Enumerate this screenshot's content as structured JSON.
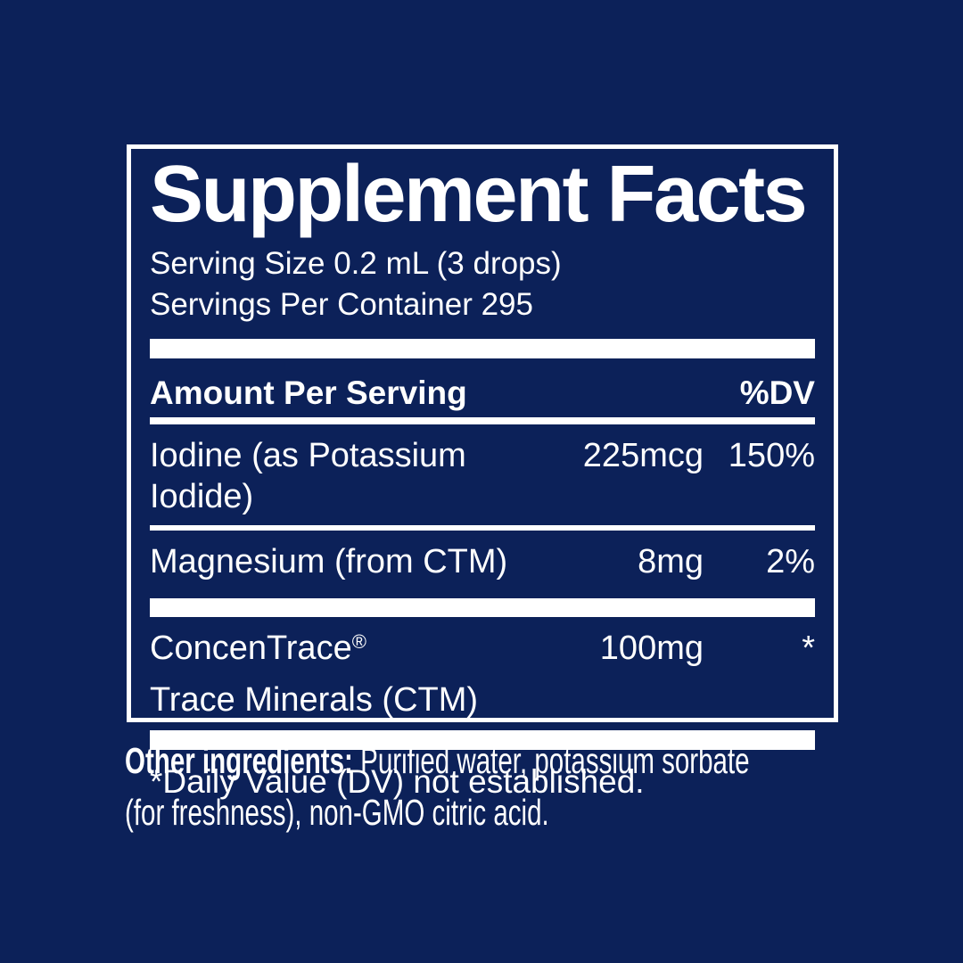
{
  "colors": {
    "background": "#0c2159",
    "panel_border": "#ffffff",
    "text": "#ffffff"
  },
  "panel": {
    "title": "Supplement Facts",
    "serving_size": "Serving Size 0.2 mL (3 drops)",
    "servings_per_container": "Servings Per Container 295",
    "columns": {
      "amount_header": "Amount Per Serving",
      "dv_header": "%DV"
    },
    "rows": [
      {
        "name": "Iodine (as Potassium Iodide)",
        "amount": "225mcg",
        "dv": "150%"
      },
      {
        "name": "Magnesium (from CTM)",
        "amount": "8mg",
        "dv": "2%"
      },
      {
        "name": "ConcenTrace",
        "trademark": "®",
        "name_line2": "Trace Minerals (CTM)",
        "amount": "100mg",
        "dv": "*"
      }
    ],
    "footnote": "*Daily Value (DV) not established."
  },
  "other_ingredients": {
    "label": "Other ingredients:",
    "line1": "Purified water, potassium sorbate",
    "line2": "(for freshness), non-GMO citric acid."
  }
}
